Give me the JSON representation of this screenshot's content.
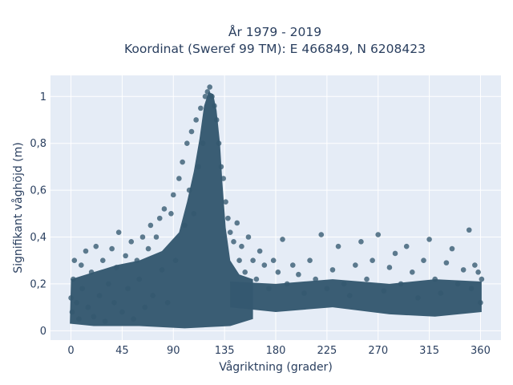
{
  "chart_data": {
    "type": "scatter",
    "title_line1": "År 1979 - 2019",
    "title_line2": "Koordinat (Sweref 99 TM): E 466849, N 6208423",
    "xlabel": "Vågriktning (grader)",
    "ylabel": "Signifikant våghöjd (m)",
    "xlim": [
      -18,
      378
    ],
    "ylim": [
      -0.04,
      1.09
    ],
    "xticks": [
      0,
      45,
      90,
      135,
      180,
      225,
      270,
      315,
      360
    ],
    "xtick_labels": [
      "0",
      "45",
      "90",
      "135",
      "180",
      "225",
      "270",
      "315",
      "360"
    ],
    "yticks": [
      0,
      0.2,
      0.4,
      0.6,
      0.8,
      1
    ],
    "ytick_labels": [
      "0",
      "0,2",
      "0,4",
      "0,6",
      "0,8",
      "1"
    ],
    "grid": true,
    "marker_color": "#34586f",
    "background_color": "#e5ecf6",
    "sampled_points": [
      [
        0,
        0.14
      ],
      [
        1,
        0.08
      ],
      [
        2,
        0.22
      ],
      [
        3,
        0.3
      ],
      [
        5,
        0.12
      ],
      [
        7,
        0.05
      ],
      [
        9,
        0.28
      ],
      [
        10,
        0.18
      ],
      [
        13,
        0.34
      ],
      [
        15,
        0.1
      ],
      [
        18,
        0.25
      ],
      [
        20,
        0.06
      ],
      [
        22,
        0.36
      ],
      [
        25,
        0.15
      ],
      [
        28,
        0.3
      ],
      [
        30,
        0.04
      ],
      [
        33,
        0.2
      ],
      [
        36,
        0.35
      ],
      [
        38,
        0.12
      ],
      [
        40,
        0.27
      ],
      [
        42,
        0.42
      ],
      [
        45,
        0.08
      ],
      [
        48,
        0.32
      ],
      [
        50,
        0.18
      ],
      [
        53,
        0.38
      ],
      [
        55,
        0.05
      ],
      [
        58,
        0.3
      ],
      [
        60,
        0.22
      ],
      [
        63,
        0.4
      ],
      [
        65,
        0.1
      ],
      [
        68,
        0.35
      ],
      [
        70,
        0.45
      ],
      [
        72,
        0.15
      ],
      [
        75,
        0.4
      ],
      [
        78,
        0.48
      ],
      [
        80,
        0.26
      ],
      [
        82,
        0.52
      ],
      [
        85,
        0.12
      ],
      [
        88,
        0.5
      ],
      [
        90,
        0.58
      ],
      [
        92,
        0.3
      ],
      [
        95,
        0.65
      ],
      [
        98,
        0.72
      ],
      [
        100,
        0.45
      ],
      [
        102,
        0.8
      ],
      [
        104,
        0.6
      ],
      [
        106,
        0.85
      ],
      [
        108,
        0.5
      ],
      [
        110,
        0.9
      ],
      [
        112,
        0.7
      ],
      [
        114,
        0.95
      ],
      [
        116,
        0.8
      ],
      [
        118,
        1.0
      ],
      [
        120,
        1.02
      ],
      [
        122,
        1.04
      ],
      [
        124,
        1.0
      ],
      [
        126,
        0.96
      ],
      [
        128,
        0.9
      ],
      [
        130,
        0.8
      ],
      [
        132,
        0.7
      ],
      [
        134,
        0.65
      ],
      [
        136,
        0.55
      ],
      [
        138,
        0.48
      ],
      [
        140,
        0.42
      ],
      [
        143,
        0.38
      ],
      [
        146,
        0.46
      ],
      [
        148,
        0.3
      ],
      [
        150,
        0.36
      ],
      [
        153,
        0.25
      ],
      [
        156,
        0.4
      ],
      [
        160,
        0.3
      ],
      [
        163,
        0.22
      ],
      [
        166,
        0.34
      ],
      [
        170,
        0.28
      ],
      [
        174,
        0.18
      ],
      [
        178,
        0.3
      ],
      [
        182,
        0.25
      ],
      [
        186,
        0.39
      ],
      [
        190,
        0.2
      ],
      [
        195,
        0.28
      ],
      [
        200,
        0.24
      ],
      [
        205,
        0.16
      ],
      [
        210,
        0.3
      ],
      [
        215,
        0.22
      ],
      [
        220,
        0.41
      ],
      [
        225,
        0.18
      ],
      [
        230,
        0.26
      ],
      [
        235,
        0.36
      ],
      [
        240,
        0.2
      ],
      [
        245,
        0.15
      ],
      [
        250,
        0.28
      ],
      [
        255,
        0.38
      ],
      [
        260,
        0.22
      ],
      [
        265,
        0.3
      ],
      [
        270,
        0.41
      ],
      [
        275,
        0.17
      ],
      [
        280,
        0.27
      ],
      [
        285,
        0.33
      ],
      [
        290,
        0.2
      ],
      [
        295,
        0.36
      ],
      [
        300,
        0.25
      ],
      [
        305,
        0.14
      ],
      [
        310,
        0.3
      ],
      [
        315,
        0.39
      ],
      [
        320,
        0.22
      ],
      [
        325,
        0.16
      ],
      [
        330,
        0.29
      ],
      [
        335,
        0.35
      ],
      [
        340,
        0.2
      ],
      [
        345,
        0.26
      ],
      [
        350,
        0.43
      ],
      [
        352,
        0.18
      ],
      [
        355,
        0.28
      ],
      [
        358,
        0.25
      ],
      [
        360,
        0.12
      ],
      [
        361,
        0.22
      ]
    ]
  }
}
